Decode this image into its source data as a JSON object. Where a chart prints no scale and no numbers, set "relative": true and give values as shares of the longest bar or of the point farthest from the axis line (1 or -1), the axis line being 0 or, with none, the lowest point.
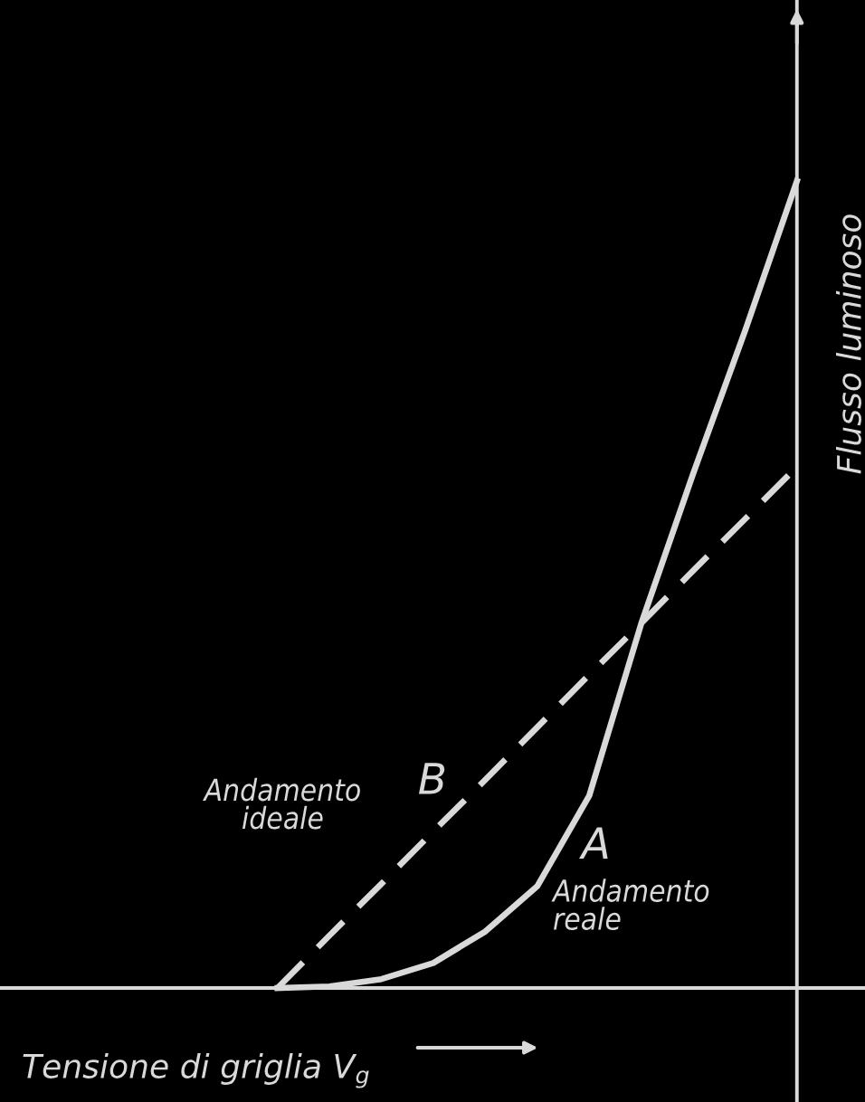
{
  "chart_data": {
    "type": "line",
    "relative": true,
    "categories": [
      null,
      null,
      null,
      null,
      null,
      null,
      null,
      null,
      null,
      null,
      null,
      null,
      null,
      null,
      null,
      null
    ],
    "series": [
      {
        "name": "A",
        "color": "#d9d9d9",
        "line_style": "solid",
        "values": [
          null,
          null,
          null,
          null,
          null,
          0,
          0.002,
          0.011,
          0.031,
          0.07,
          0.126,
          0.238,
          0.451,
          0.637,
          0.814,
          1
        ]
      },
      {
        "name": "B",
        "color": "#d9d9d9",
        "line_style": "dashed",
        "values": [
          null,
          null,
          null,
          null,
          null,
          0,
          0.065,
          0.129,
          0.194,
          0.258,
          0.323,
          0.388,
          0.452,
          0.517,
          0.581,
          0.646
        ]
      }
    ],
    "xlabel": "Tensione di griglia V$_{g}$",
    "ylabel": "Flusso luminoso",
    "annotations": [
      "Andamento\nideale",
      "Andamento\nreale"
    ],
    "legend": false,
    "marker": "none"
  }
}
